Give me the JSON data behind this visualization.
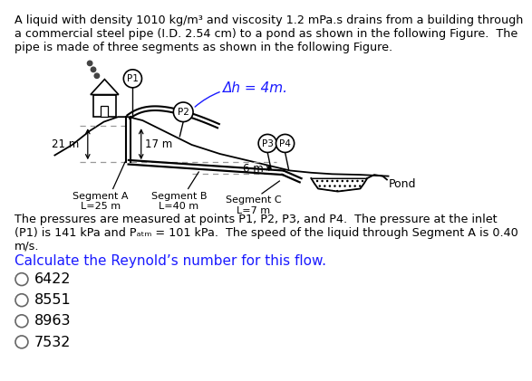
{
  "title_text": "A liquid with density 1010 kg/m³ and viscosity 1.2 mPa.s drains from a building through\na commercial steel pipe (I.D. 2.54 cm) to a pond as shown in the following Figure.  The\npipe is made of three segments as shown in the following Figure.",
  "desc_text": "The pressures are measured at points P1, P2, P3, and P4.  The pressure at the inlet\n(P1) is 141 kPa and Pₐₜₘ = 101 kPa.  The speed of the liquid through Segment A is 0.40\nm/s.",
  "question_text": "Calculate the Reynold’s number for this flow.",
  "choices": [
    "6422",
    "8551",
    "8963",
    "7532"
  ],
  "delta_h_label": "Δh = 4m.",
  "seg_a_label": "Segment A\nL=25 m",
  "seg_b_label": "Segment B\nL=40 m",
  "seg_c_label": "Segment C\nL=7 m",
  "height_21": "21 m",
  "height_17": "17 m",
  "height_6": "6 m",
  "pond_label": "Pond",
  "bg_color": "#ffffff",
  "text_color": "#000000",
  "blue_color": "#1a1aff",
  "line_color": "#000000",
  "gray_line": "#888888"
}
